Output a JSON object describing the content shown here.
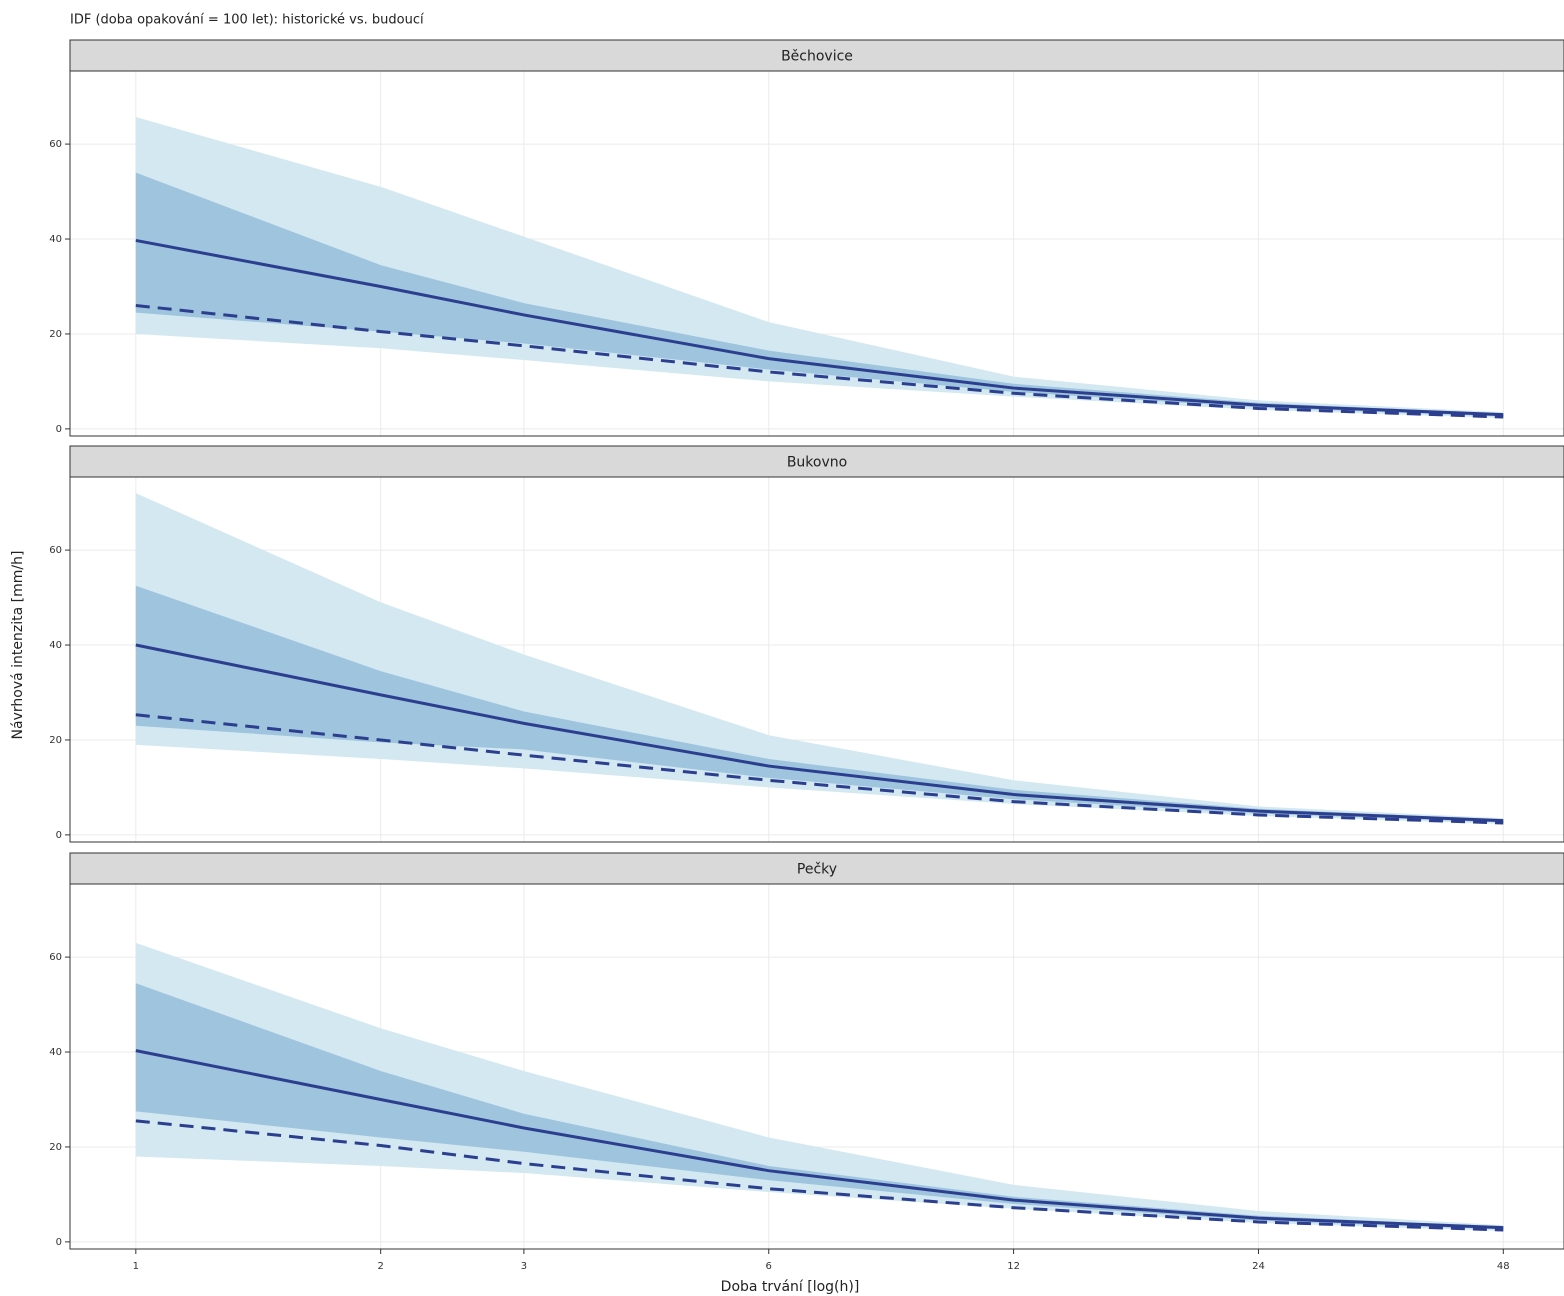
{
  "title": "IDF (doba opakování = 100 let): historické vs. budoucí",
  "x_label": "Doba trvání [log(h)]",
  "y_label": "Návrhová intenzita [mm/h]",
  "chart_data": [
    {
      "type": "line",
      "title": "Běchovice",
      "x": [
        1,
        2,
        3,
        6,
        12,
        24,
        48
      ],
      "log_x": true,
      "grid": true,
      "xlim": [
        0.83,
        57
      ],
      "xticks": [
        1,
        2,
        3,
        6,
        12,
        24,
        48
      ],
      "ylim": [
        -1.5,
        75.4
      ],
      "yticks": [
        0,
        20,
        40,
        60
      ],
      "bands": [
        {
          "color": "#d3e8f0",
          "upper": [
            65.7,
            51,
            40.5,
            22.5,
            11,
            6,
            3.5
          ],
          "lower": [
            20,
            17,
            14.5,
            10,
            6.8,
            4,
            2.3
          ]
        },
        {
          "color": "#9fc4de",
          "upper": [
            54,
            34.5,
            26.5,
            16.5,
            9.5,
            5.5,
            3.2
          ],
          "lower": [
            24.5,
            20.5,
            18,
            12.5,
            7.8,
            4.5,
            2.6
          ]
        }
      ],
      "series": [
        {
          "color": "#2c3f8f",
          "dash": false,
          "values": [
            39.7,
            30,
            24,
            14.8,
            8.6,
            5,
            3
          ]
        },
        {
          "color": "#2c3f8f",
          "dash": true,
          "values": [
            26,
            20.5,
            17.5,
            12,
            7.5,
            4.3,
            2.5
          ]
        }
      ]
    },
    {
      "type": "line",
      "title": "Bukovno",
      "x": [
        1,
        2,
        3,
        6,
        12,
        24,
        48
      ],
      "log_x": true,
      "grid": true,
      "xlim": [
        0.83,
        57
      ],
      "xticks": [
        1,
        2,
        3,
        6,
        12,
        24,
        48
      ],
      "ylim": [
        -1.5,
        75.4
      ],
      "yticks": [
        0,
        20,
        40,
        60
      ],
      "bands": [
        {
          "color": "#d3e8f0",
          "upper": [
            72,
            49,
            38,
            21,
            11.5,
            6,
            3.5
          ],
          "lower": [
            19,
            16,
            14,
            10,
            6.5,
            4,
            2.3
          ]
        },
        {
          "color": "#9fc4de",
          "upper": [
            52.5,
            34.5,
            26,
            16,
            9.5,
            5.5,
            3.2
          ],
          "lower": [
            23,
            19.5,
            18,
            12,
            7.5,
            4.5,
            2.6
          ]
        }
      ],
      "series": [
        {
          "color": "#2c3f8f",
          "dash": false,
          "values": [
            40,
            29.5,
            23.5,
            14.5,
            8.5,
            5,
            3
          ]
        },
        {
          "color": "#2c3f8f",
          "dash": true,
          "values": [
            25.3,
            20,
            16.8,
            11.5,
            7,
            4.2,
            2.5
          ]
        }
      ]
    },
    {
      "type": "line",
      "title": "Pečky",
      "x": [
        1,
        2,
        3,
        6,
        12,
        24,
        48
      ],
      "log_x": true,
      "grid": true,
      "xlim": [
        0.83,
        57
      ],
      "xticks": [
        1,
        2,
        3,
        6,
        12,
        24,
        48
      ],
      "ylim": [
        -1.5,
        75.4
      ],
      "yticks": [
        0,
        20,
        40,
        60
      ],
      "bands": [
        {
          "color": "#d3e8f0",
          "upper": [
            63,
            45,
            36,
            22,
            12,
            6.5,
            3.5
          ],
          "lower": [
            18,
            16,
            14.5,
            10.5,
            7,
            4,
            2.3
          ]
        },
        {
          "color": "#9fc4de",
          "upper": [
            54.5,
            36,
            27,
            16,
            9.5,
            5.5,
            3.2
          ],
          "lower": [
            27.5,
            22,
            19,
            13,
            8,
            4.5,
            2.6
          ]
        }
      ],
      "series": [
        {
          "color": "#2c3f8f",
          "dash": false,
          "values": [
            40.3,
            30,
            24,
            15,
            8.8,
            5,
            3
          ]
        },
        {
          "color": "#2c3f8f",
          "dash": true,
          "values": [
            25.5,
            20.3,
            16.5,
            11.2,
            7.2,
            4.2,
            2.5
          ]
        }
      ]
    }
  ]
}
